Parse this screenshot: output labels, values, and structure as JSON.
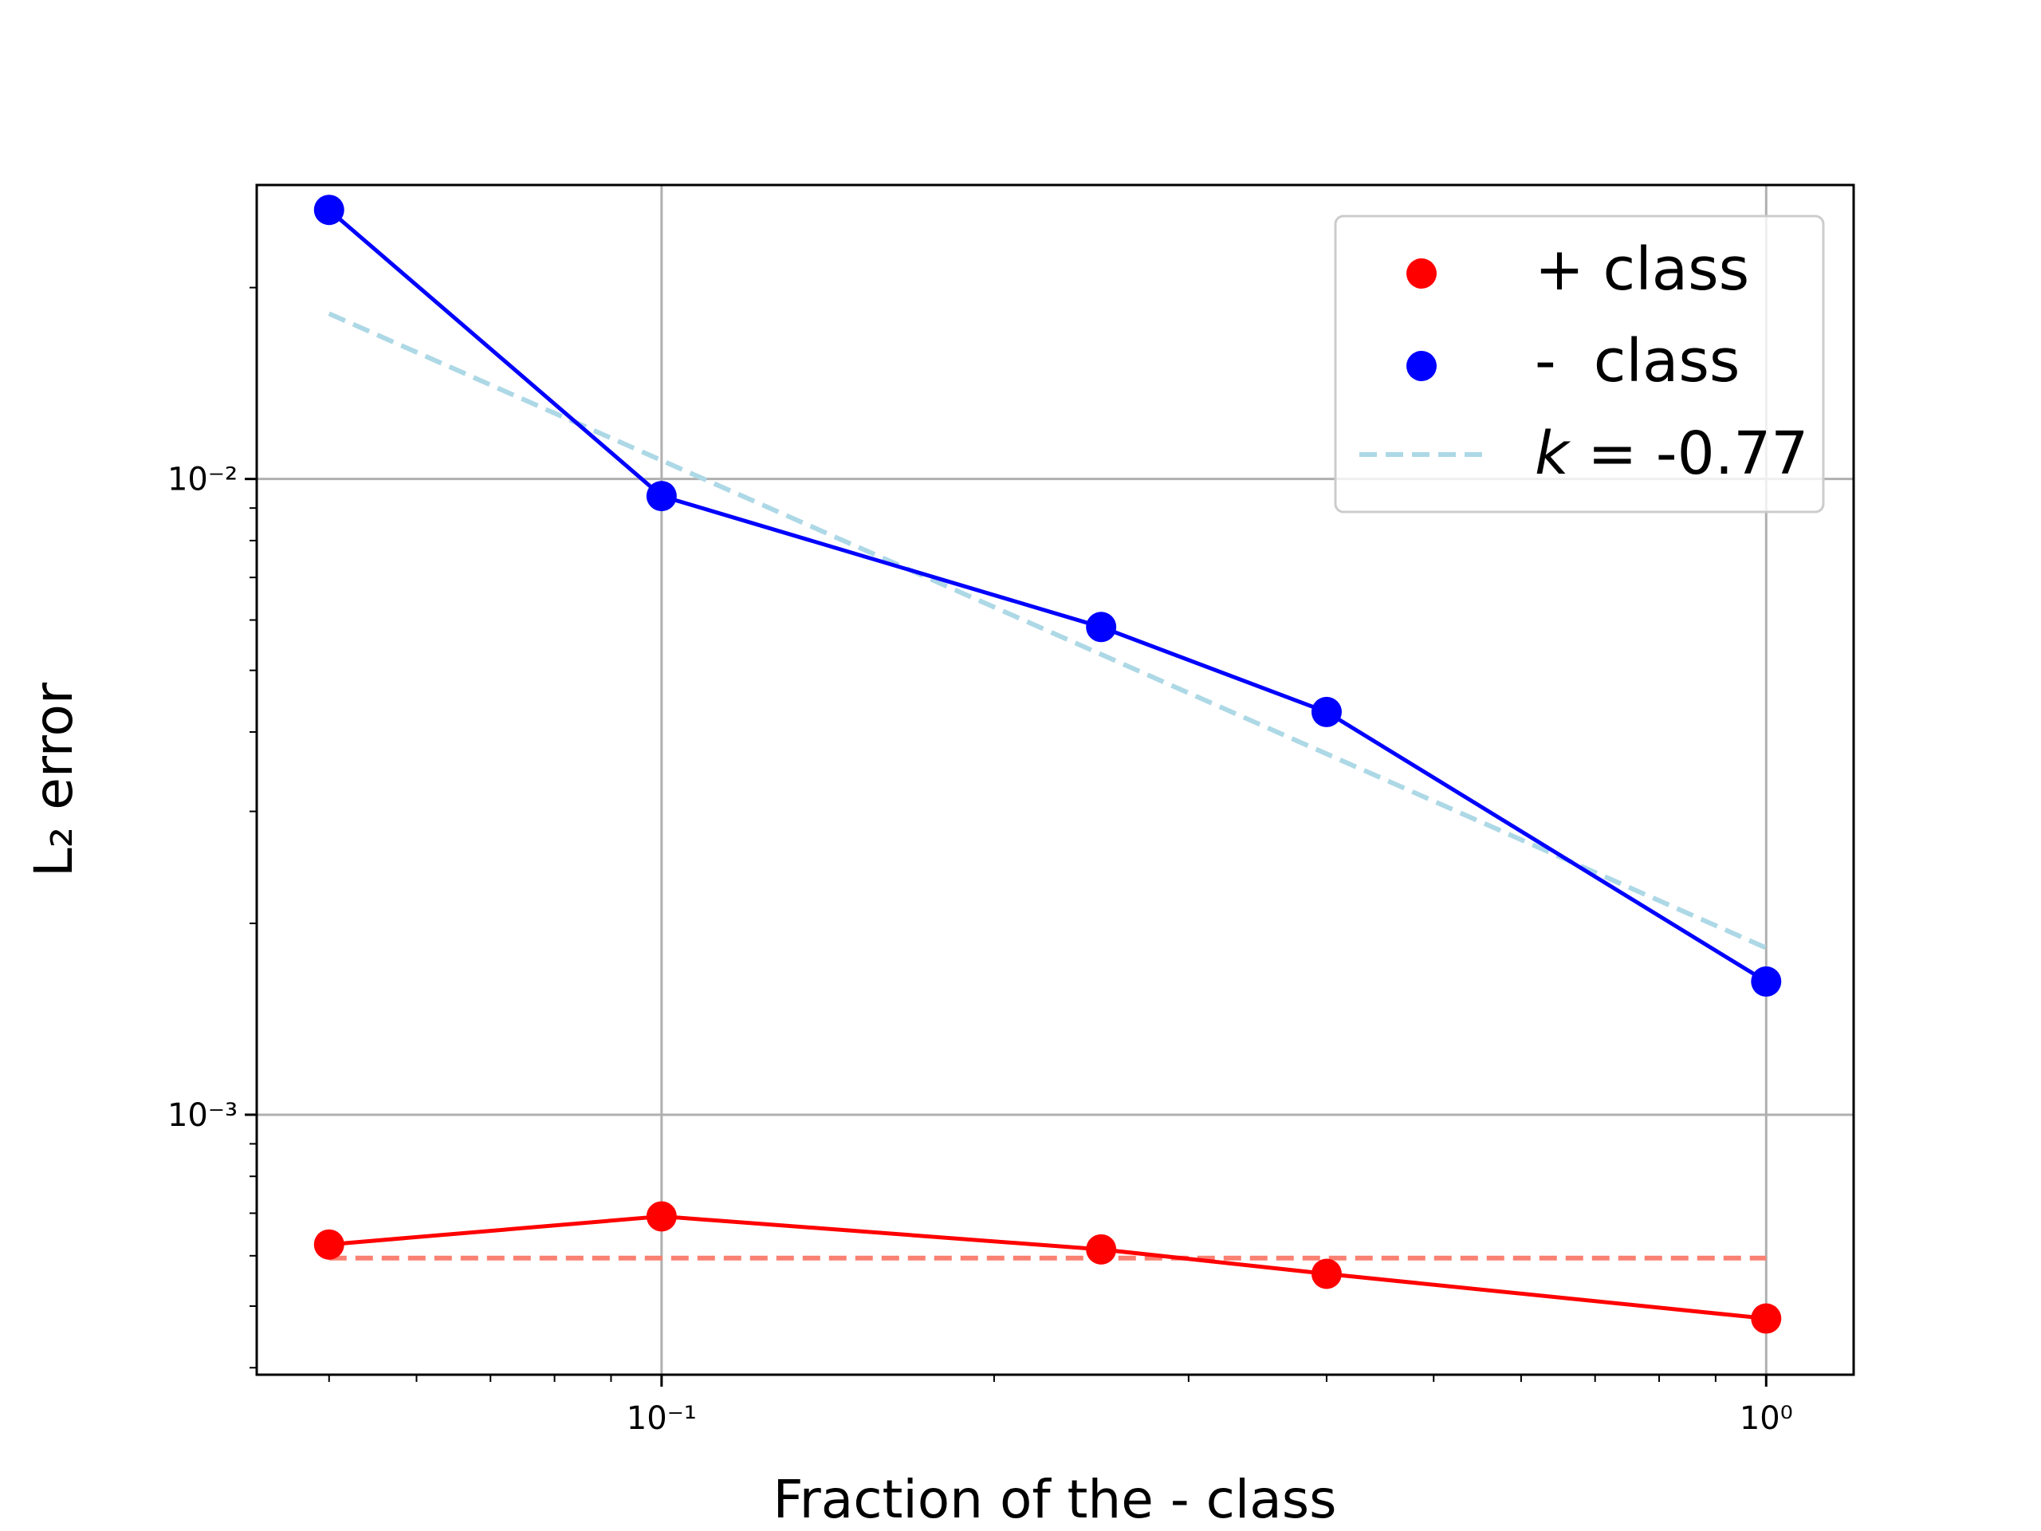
{
  "chart_data": {
    "type": "line",
    "xscale": "log",
    "yscale": "log",
    "xlabel": "Fraction of the - class",
    "ylabel": "L₂ error",
    "xlim": [
      0.043,
      1.2
    ],
    "ylim": [
      0.00039,
      0.029
    ],
    "grid": true,
    "legend_position": "top-right",
    "x_major_ticks": [
      {
        "value": 0.1,
        "label": "10⁻¹"
      },
      {
        "value": 1,
        "label": "10⁰"
      }
    ],
    "y_major_ticks": [
      {
        "value": 0.001,
        "label": "10⁻³"
      },
      {
        "value": 0.01,
        "label": "10⁻²"
      }
    ],
    "x": [
      0.05,
      0.1,
      0.25,
      0.4,
      1.0
    ],
    "series": [
      {
        "name": "+ class",
        "marker_color": "#ff0000",
        "line_color": "#ff0000",
        "values": [
          0.000625,
          0.000692,
          0.000614,
          0.000562,
          0.000478
        ]
      },
      {
        "name": "-  class",
        "marker_color": "#0000ff",
        "line_color": "#0000ff",
        "values": [
          0.0265,
          0.0094,
          0.00585,
          0.0043,
          0.00162
        ]
      }
    ],
    "reference_lines": [
      {
        "name": "k = -0.77",
        "k_symbol": "k",
        "k_value": "-0.77",
        "style": "dashed",
        "color": "#add8e6",
        "x": [
          0.05,
          1.0
        ],
        "values": [
          0.0182,
          0.00183
        ]
      },
      {
        "name": "",
        "style": "dashed",
        "color": "#fa8072",
        "x": [
          0.05,
          1.0
        ],
        "values": [
          0.000595,
          0.000595
        ]
      }
    ]
  }
}
